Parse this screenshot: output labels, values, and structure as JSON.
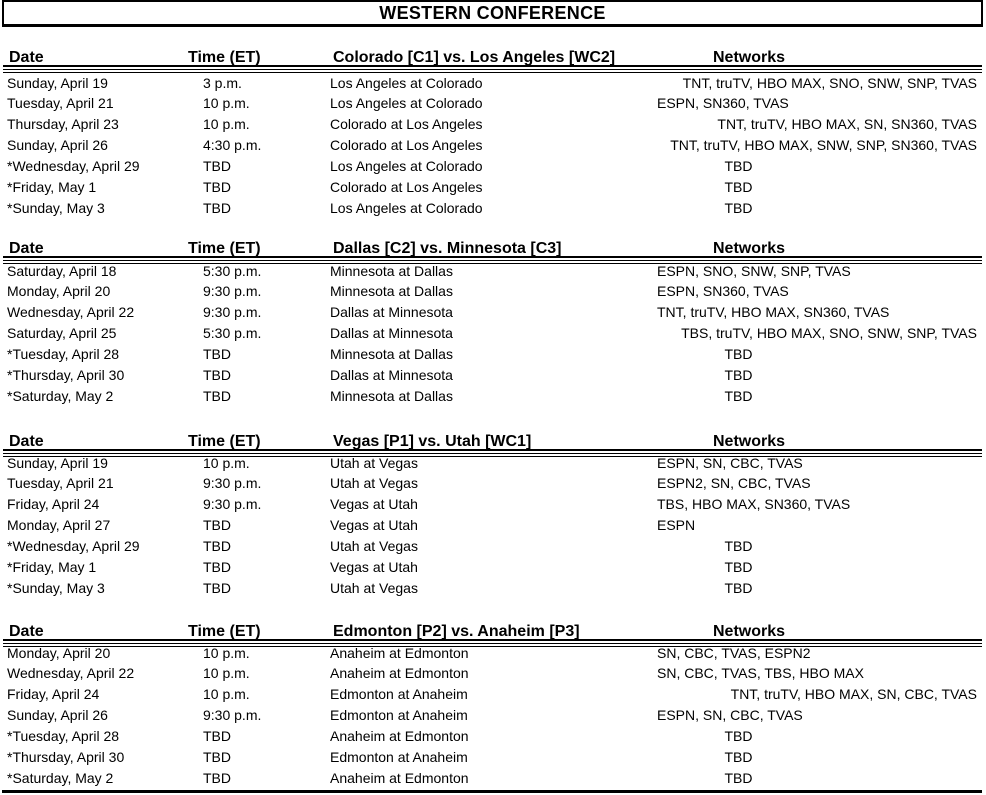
{
  "title": "WESTERN CONFERENCE",
  "columns": {
    "date": "Date",
    "time": "Time (ET)",
    "networks": "Networks"
  },
  "tables": [
    {
      "matchup": "Colorado [C1] vs. Los Angeles [WC2]",
      "rows": [
        {
          "date": "Sunday, April 19",
          "time": "3 p.m.",
          "game": "Los Angeles at Colorado",
          "networks": "TNT, truTV, HBO MAX, SNO, SNW, SNP, TVAS",
          "net_align": "right"
        },
        {
          "date": "Tuesday, April 21",
          "time": "10 p.m.",
          "game": "Los Angeles at Colorado",
          "networks": "ESPN, SN360, TVAS",
          "net_align": "left"
        },
        {
          "date": "Thursday, April 23",
          "time": "10 p.m.",
          "game": "Colorado at Los Angeles",
          "networks": "TNT, truTV, HBO MAX, SN, SN360, TVAS",
          "net_align": "right"
        },
        {
          "date": "Sunday, April 26",
          "time": "4:30 p.m.",
          "game": "Colorado at Los Angeles",
          "networks": "TNT, truTV, HBO MAX, SNW, SNP, SN360, TVAS",
          "net_align": "right"
        },
        {
          "date": "*Wednesday, April 29",
          "time": "TBD",
          "game": "Los Angeles at Colorado",
          "networks": "TBD",
          "net_align": "center"
        },
        {
          "date": "*Friday, May 1",
          "time": "TBD",
          "game": "Colorado at Los Angeles",
          "networks": "TBD",
          "net_align": "center"
        },
        {
          "date": "*Sunday, May 3",
          "time": "TBD",
          "game": "Los Angeles at Colorado",
          "networks": "TBD",
          "net_align": "center"
        }
      ]
    },
    {
      "matchup": "Dallas [C2] vs. Minnesota [C3]",
      "rows": [
        {
          "date": "Saturday, April 18",
          "time": "5:30 p.m.",
          "game": "Minnesota at Dallas",
          "networks": "ESPN, SNO, SNW, SNP, TVAS",
          "net_align": "left"
        },
        {
          "date": "Monday, April 20",
          "time": "9:30 p.m.",
          "game": "Minnesota at Dallas",
          "networks": "ESPN, SN360, TVAS",
          "net_align": "left"
        },
        {
          "date": "Wednesday, April 22",
          "time": "9:30 p.m.",
          "game": "Dallas at Minnesota",
          "networks": "TNT, truTV, HBO MAX, SN360, TVAS",
          "net_align": "left"
        },
        {
          "date": "Saturday, April 25",
          "time": "5:30 p.m.",
          "game": "Dallas at Minnesota",
          "networks": "TBS, truTV, HBO MAX, SNO, SNW, SNP, TVAS",
          "net_align": "right"
        },
        {
          "date": "*Tuesday, April 28",
          "time": "TBD",
          "game": "Minnesota at Dallas",
          "networks": "TBD",
          "net_align": "center"
        },
        {
          "date": "*Thursday, April 30",
          "time": "TBD",
          "game": "Dallas at Minnesota",
          "networks": "TBD",
          "net_align": "center"
        },
        {
          "date": "*Saturday, May 2",
          "time": "TBD",
          "game": "Minnesota at Dallas",
          "networks": "TBD",
          "net_align": "center"
        }
      ]
    },
    {
      "matchup": "Vegas [P1] vs. Utah [WC1]",
      "rows": [
        {
          "date": "Sunday, April 19",
          "time": "10 p.m.",
          "game": "Utah at Vegas",
          "networks": "ESPN, SN, CBC, TVAS",
          "net_align": "left"
        },
        {
          "date": "Tuesday, April 21",
          "time": "9:30 p.m.",
          "game": "Utah at Vegas",
          "networks": "ESPN2, SN, CBC, TVAS",
          "net_align": "left"
        },
        {
          "date": "Friday, April 24",
          "time": "9:30 p.m.",
          "game": "Vegas at Utah",
          "networks": "TBS, HBO MAX, SN360, TVAS",
          "net_align": "left"
        },
        {
          "date": "Monday, April 27",
          "time": "TBD",
          "game": "Vegas at Utah",
          "networks": "ESPN",
          "net_align": "left"
        },
        {
          "date": "*Wednesday, April 29",
          "time": "TBD",
          "game": "Utah at Vegas",
          "networks": "TBD",
          "net_align": "center"
        },
        {
          "date": "*Friday, May 1",
          "time": "TBD",
          "game": "Vegas at Utah",
          "networks": "TBD",
          "net_align": "center"
        },
        {
          "date": "*Sunday, May 3",
          "time": "TBD",
          "game": "Utah at Vegas",
          "networks": "TBD",
          "net_align": "center"
        }
      ]
    },
    {
      "matchup": "Edmonton [P2] vs. Anaheim [P3]",
      "rows": [
        {
          "date": "Monday, April 20",
          "time": "10 p.m.",
          "game": "Anaheim at Edmonton",
          "networks": "SN, CBC, TVAS, ESPN2",
          "net_align": "left"
        },
        {
          "date": "Wednesday, April 22",
          "time": "10 p.m.",
          "game": "Anaheim at Edmonton",
          "networks": "SN, CBC, TVAS, TBS, HBO MAX",
          "net_align": "left"
        },
        {
          "date": "Friday, April 24",
          "time": "10 p.m.",
          "game": "Edmonton at Anaheim",
          "networks": "TNT, truTV, HBO MAX, SN, CBC, TVAS",
          "net_align": "right"
        },
        {
          "date": "Sunday, April 26",
          "time": "9:30 p.m.",
          "game": "Edmonton at Anaheim",
          "networks": "ESPN, SN, CBC, TVAS",
          "net_align": "left"
        },
        {
          "date": "*Tuesday, April 28",
          "time": "TBD",
          "game": "Anaheim at Edmonton",
          "networks": "TBD",
          "net_align": "center"
        },
        {
          "date": "*Thursday, April 30",
          "time": "TBD",
          "game": "Edmonton at Anaheim",
          "networks": "TBD",
          "net_align": "center"
        },
        {
          "date": "*Saturday, May 2",
          "time": "TBD",
          "game": "Anaheim at Edmonton",
          "networks": "TBD",
          "net_align": "center"
        }
      ]
    }
  ]
}
